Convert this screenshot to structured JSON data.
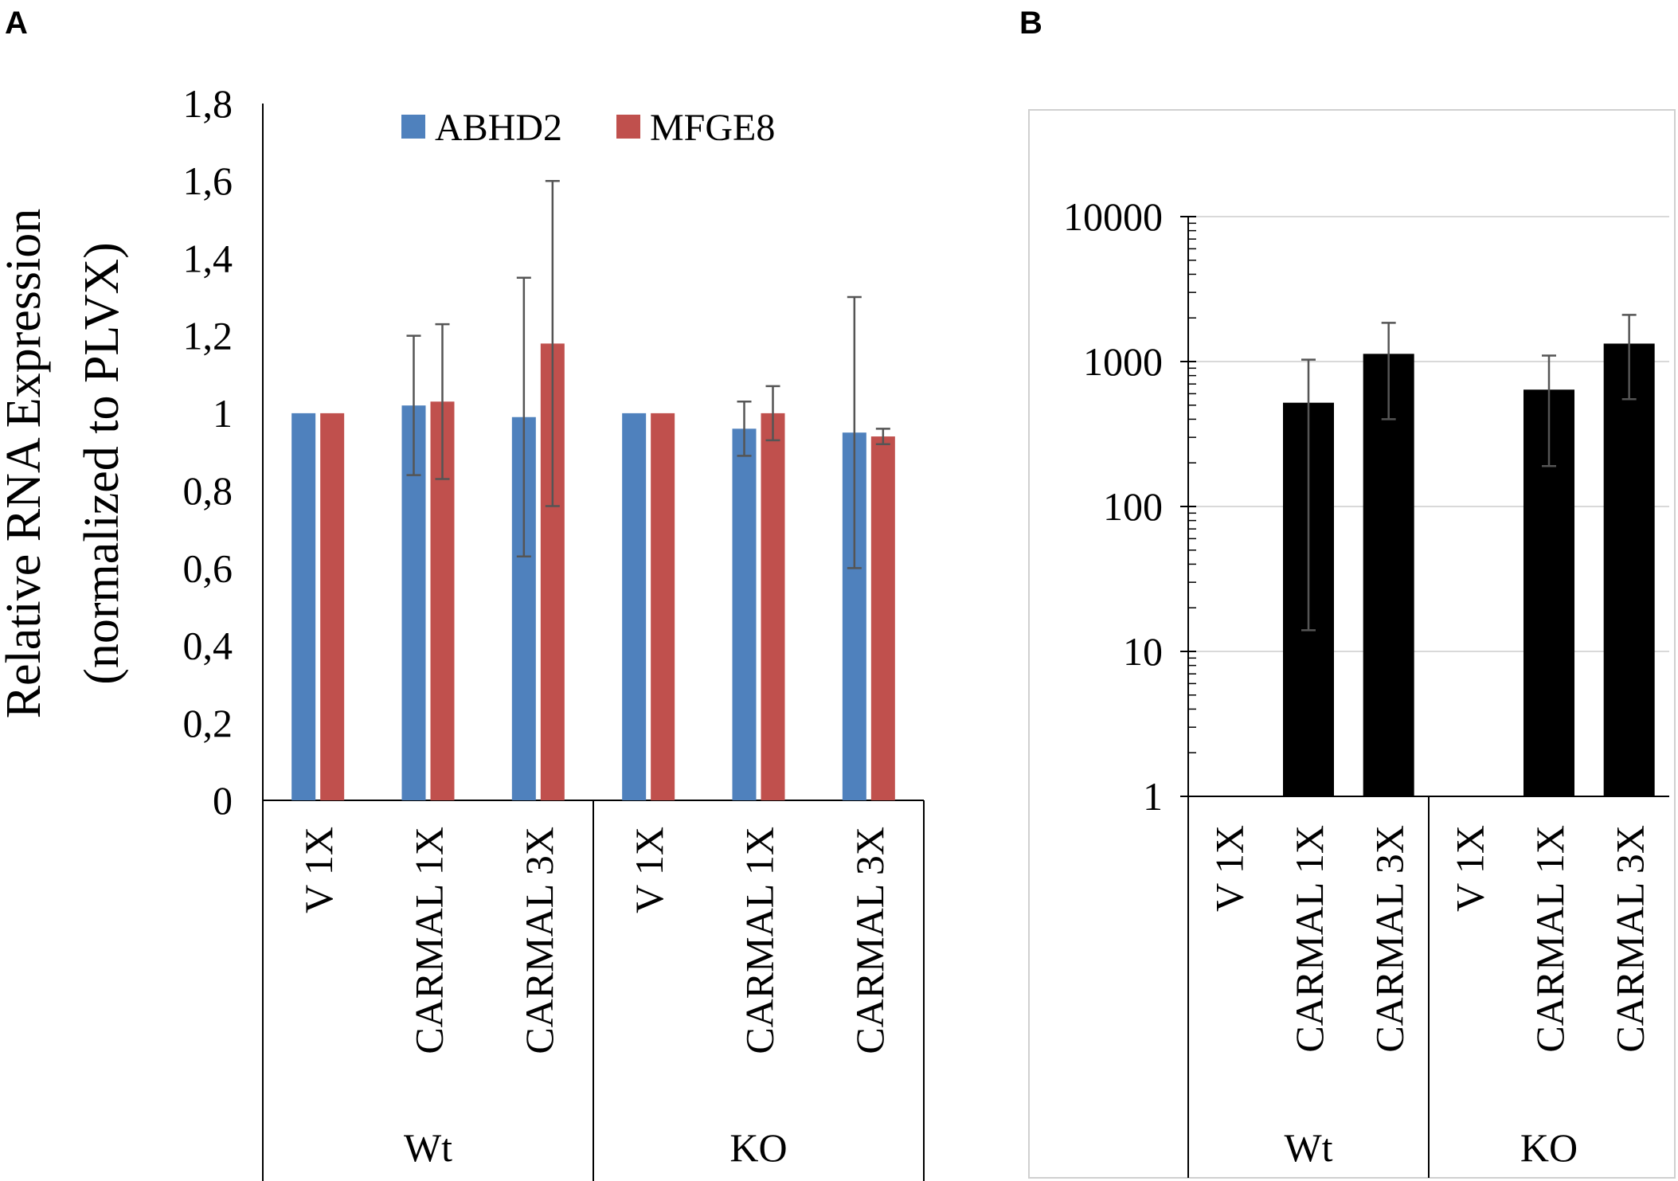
{
  "panels": {
    "a_label": "A",
    "b_label": "B"
  },
  "chart_data": [
    {
      "type": "bar",
      "panel": "A",
      "ylabel_line1": "Relative RNA Expression",
      "ylabel_line2": "(normalized to PLVX)",
      "ylim": [
        0,
        1.8
      ],
      "yticks": [
        0,
        0.2,
        0.4,
        0.6,
        0.8,
        1,
        1.2,
        1.4,
        1.6,
        1.8
      ],
      "ytick_labels": [
        "0",
        "0,2",
        "0,4",
        "0,6",
        "0,8",
        "1",
        "1,2",
        "1,4",
        "1,6",
        "1,8"
      ],
      "grid": false,
      "legend_position": "top-center",
      "groups": [
        "Wt",
        "KO"
      ],
      "categories": [
        "V 1X",
        "CARMAL 1X",
        "CARMAL 3X",
        "V 1X",
        "CARMAL 1X",
        "CARMAL 3X"
      ],
      "series": [
        {
          "name": "ABHD2",
          "color": "#4F81BD",
          "values": [
            1.0,
            1.02,
            0.99,
            1.0,
            0.96,
            0.95
          ],
          "errors": [
            0,
            0.18,
            0.36,
            0,
            0.07,
            0.35
          ]
        },
        {
          "name": "MFGE8",
          "color": "#C0504D",
          "values": [
            1.0,
            1.03,
            1.18,
            1.0,
            1.0,
            0.94
          ],
          "errors": [
            0,
            0.2,
            0.42,
            0,
            0.07,
            0.02
          ]
        }
      ]
    },
    {
      "type": "bar",
      "panel": "B",
      "yscale": "log",
      "ylim": [
        1,
        10000
      ],
      "yticks": [
        1,
        10,
        100,
        1000,
        10000
      ],
      "ytick_labels": [
        "1",
        "10",
        "100",
        "1000",
        "10000"
      ],
      "grid": true,
      "groups": [
        "Wt",
        "KO"
      ],
      "categories": [
        "V 1X",
        "CARMAL 1X",
        "CARMAL 3X",
        "V 1X",
        "CARMAL 1X",
        "CARMAL 3X"
      ],
      "series": [
        {
          "name": "",
          "color": "#000000",
          "values": [
            1,
            520,
            1130,
            1,
            640,
            1330
          ],
          "err_low": [
            1,
            14,
            400,
            1,
            190,
            550
          ],
          "err_high": [
            1,
            1030,
            1850,
            1,
            1100,
            2100
          ]
        }
      ]
    }
  ]
}
